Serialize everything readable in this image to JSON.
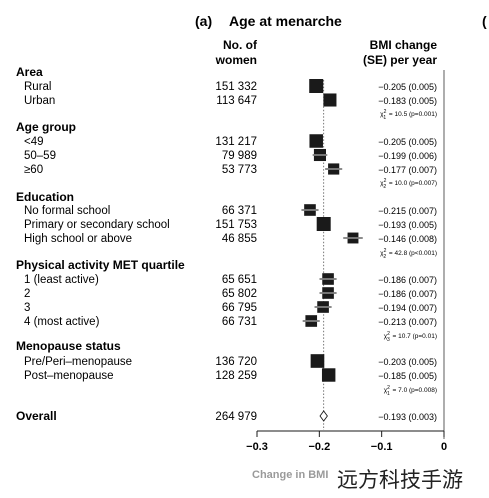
{
  "chart_data": {
    "type": "forest",
    "panel_label": "(a)",
    "title": "Age at menarche",
    "col_n_header": [
      "No. of",
      "women"
    ],
    "col_est_header": [
      "BMI change",
      "(SE) per year"
    ],
    "xlabel": "Change in BMI",
    "xlim": [
      -0.3,
      0
    ],
    "xticks": [
      "-0.3",
      "-0.2",
      "-0.1",
      "0"
    ],
    "reference_value": -0.193,
    "groups": [
      {
        "name": "Area",
        "rows": [
          {
            "label": "Rural",
            "n": "151 332",
            "value": -0.205,
            "se": 0.005,
            "text": "−0.205 (0.005)"
          },
          {
            "label": "Urban",
            "n": "113 647",
            "value": -0.183,
            "se": 0.005,
            "text": "−0.183 (0.005)"
          }
        ],
        "chi": {
          "df": "1",
          "stat": "= 10.5 (p=0.001)"
        }
      },
      {
        "name": "Age group",
        "rows": [
          {
            "label": "<49",
            "n": "131 217",
            "value": -0.205,
            "se": 0.005,
            "text": "−0.205 (0.005)"
          },
          {
            "label": "50–59",
            "n": "79 989",
            "value": -0.199,
            "se": 0.006,
            "text": "−0.199 (0.006)"
          },
          {
            "label": "≥60",
            "n": "53 773",
            "value": -0.177,
            "se": 0.007,
            "text": "−0.177 (0.007)"
          }
        ],
        "chi": {
          "df": "2",
          "stat": "= 10.0 (p=0.007)"
        }
      },
      {
        "name": "Education",
        "rows": [
          {
            "label": "No formal school",
            "n": "66 371",
            "value": -0.215,
            "se": 0.007,
            "text": "−0.215 (0.007)"
          },
          {
            "label": "Primary or secondary school",
            "n": "151 753",
            "value": -0.193,
            "se": 0.005,
            "text": "−0.193 (0.005)"
          },
          {
            "label": "High school or above",
            "n": "46 855",
            "value": -0.146,
            "se": 0.008,
            "text": "−0.146 (0.008)"
          }
        ],
        "chi": {
          "df": "2",
          "stat": "= 42.8 (p<0.001)"
        }
      },
      {
        "name": "Physical activity MET quartile",
        "rows": [
          {
            "label": "1 (least active)",
            "n": "65 651",
            "value": -0.186,
            "se": 0.007,
            "text": "−0.186 (0.007)"
          },
          {
            "label": "2",
            "n": "65 802",
            "value": -0.186,
            "se": 0.007,
            "text": "−0.186 (0.007)"
          },
          {
            "label": "3",
            "n": "66 795",
            "value": -0.194,
            "se": 0.007,
            "text": "−0.194 (0.007)"
          },
          {
            "label": "4 (most active)",
            "n": "66 731",
            "value": -0.213,
            "se": 0.007,
            "text": "−0.213 (0.007)"
          }
        ],
        "chi": {
          "df": "3",
          "stat": "= 10.7 (p=0.01)"
        }
      },
      {
        "name": "Menopause status",
        "rows": [
          {
            "label": "Pre/Peri–menopause",
            "n": "136 720",
            "value": -0.203,
            "se": 0.005,
            "text": "−0.203 (0.005)"
          },
          {
            "label": "Post–menopause",
            "n": "128 259",
            "value": -0.185,
            "se": 0.005,
            "text": "−0.185 (0.005)"
          }
        ],
        "chi": {
          "df": "1",
          "stat": "= 7.0 (p=0.008)"
        }
      }
    ],
    "overall": {
      "label": "Overall",
      "n": "264 979",
      "value": -0.193,
      "se": 0.003,
      "text": "−0.193 (0.003)"
    }
  },
  "overlay": {
    "watermark": "远方科技手游",
    "edge_glyph": "(",
    "colors": {
      "text": "#1a1a1a",
      "marker": "#1a1a1a",
      "overall_fill": "#ffffff",
      "axis_label": "#9a9a9a"
    }
  }
}
